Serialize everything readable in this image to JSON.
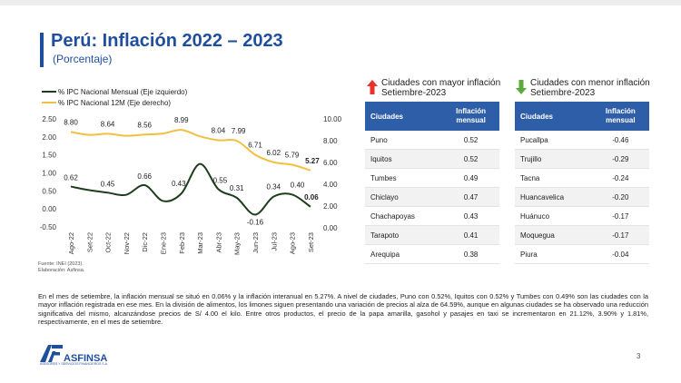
{
  "header": {
    "title": "Perú: Inflación 2022 – 2023",
    "subtitle": "(Porcentaje)"
  },
  "chart_data": {
    "type": "line",
    "categories": [
      "Ago-22",
      "Set-22",
      "Oct-22",
      "Nov-22",
      "Dic-22",
      "Ene-23",
      "Feb-23",
      "Mar-23",
      "Abr-23",
      "May-23",
      "Jun-23",
      "Jul-23",
      "Ago-23",
      "Set-23"
    ],
    "series": [
      {
        "name": "% IPC Nacional Mensual (Eje izquierdo)",
        "axis": "left",
        "color": "#1e3d1e",
        "values": [
          0.62,
          0.52,
          0.45,
          0.39,
          0.66,
          0.22,
          0.43,
          1.25,
          0.55,
          0.31,
          -0.16,
          0.34,
          0.4,
          0.06
        ],
        "labels": [
          "0.62",
          "",
          "0.45",
          "",
          "0.66",
          "",
          "0.43",
          "",
          "0.55",
          "0.31",
          "-0.16",
          "0.34",
          "0.40",
          "0.06"
        ]
      },
      {
        "name": "% IPC Nacional 12M (Eje derecho)",
        "axis": "right",
        "color": "#f0c040",
        "values": [
          8.8,
          8.53,
          8.64,
          8.45,
          8.56,
          8.66,
          8.99,
          8.4,
          8.04,
          7.99,
          6.71,
          6.02,
          5.79,
          5.27
        ],
        "labels": [
          "8.80",
          "",
          "8.64",
          "",
          "8.56",
          "",
          "8.99",
          "",
          "8.04",
          "7.99",
          "6.71",
          "6.02",
          "5.79",
          "5.27"
        ]
      }
    ],
    "y_left": {
      "range": [
        -0.5,
        2.5
      ],
      "ticks": [
        "2.50",
        "2.00",
        "1.50",
        "1.00",
        "0.50",
        "0.00",
        "-0.50"
      ]
    },
    "y_right": {
      "range": [
        0,
        10
      ],
      "ticks": [
        "10.00",
        "8.00",
        "6.00",
        "4.00",
        "2.00",
        "0.00"
      ]
    },
    "legend_position": "top-left",
    "grid": false
  },
  "tables": {
    "high": {
      "heading_line1": "Ciudades con mayor inflación",
      "heading_line2": "Setiembre-2023",
      "arrow_color": "#e8322b",
      "col_city": "Ciudades",
      "col_value_1": "Inflación",
      "col_value_2": "mensual",
      "rows": [
        {
          "city": "Puno",
          "value": "0.52"
        },
        {
          "city": "Iquitos",
          "value": "0.52"
        },
        {
          "city": "Tumbes",
          "value": "0.49"
        },
        {
          "city": "Chiclayo",
          "value": "0.47"
        },
        {
          "city": "Chachapoyas",
          "value": "0.43"
        },
        {
          "city": "Tarapoto",
          "value": "0.41"
        },
        {
          "city": "Arequipa",
          "value": "0.38"
        }
      ]
    },
    "low": {
      "heading_line1": "Ciudades con menor inflación",
      "heading_line2": "Setiembre-2023",
      "arrow_color": "#5aab3c",
      "col_city": "Ciudades",
      "col_value_1": "Inflación",
      "col_value_2": "mensual",
      "rows": [
        {
          "city": "Pucallpa",
          "value": "-0.46"
        },
        {
          "city": "Trujillo",
          "value": "-0.29"
        },
        {
          "city": "Tacna",
          "value": "-0.24"
        },
        {
          "city": "Huancavelica",
          "value": "-0.20"
        },
        {
          "city": "Huánuco",
          "value": "-0.17"
        },
        {
          "city": "Moquegua",
          "value": "-0.17"
        },
        {
          "city": "Piura",
          "value": "-0.04"
        }
      ]
    }
  },
  "source": {
    "line1": "Fuente: INEI (2023).",
    "line2": "Elaboración: Asfinsa."
  },
  "paragraph": "En el mes de setiembre, la inflación mensual se situó en 0.06% y la inflación interanual en 5.27%. A nivel de ciudades, Puno con 0.52%, Iquitos con 0.52% y Tumbes con 0.49% son las ciudades con la mayor inflación registrada en ese mes. En la división de alimentos, los limones siguen presentando una variación de precios al alza de 64.59%, aunque en algunas ciudades se ha observado una reducción significativa del mismo, alcanzándose precios de S/ 4.00 el kilo. Entre otros productos, el precio de la papa amarilla, gasohol y pasajes en taxi se incrementaron en 21.12%, 3.90% y 1.81%, respectivamente, en el mes de setiembre.",
  "footer": {
    "logo_text": "ASFINSA",
    "logo_subtext": "ASESORES Y SERVICIOS FINANCIEROS S.A.",
    "page_number": "3"
  },
  "colors": {
    "brand": "#1f4e9c",
    "table_header": "#2f5ea8"
  }
}
